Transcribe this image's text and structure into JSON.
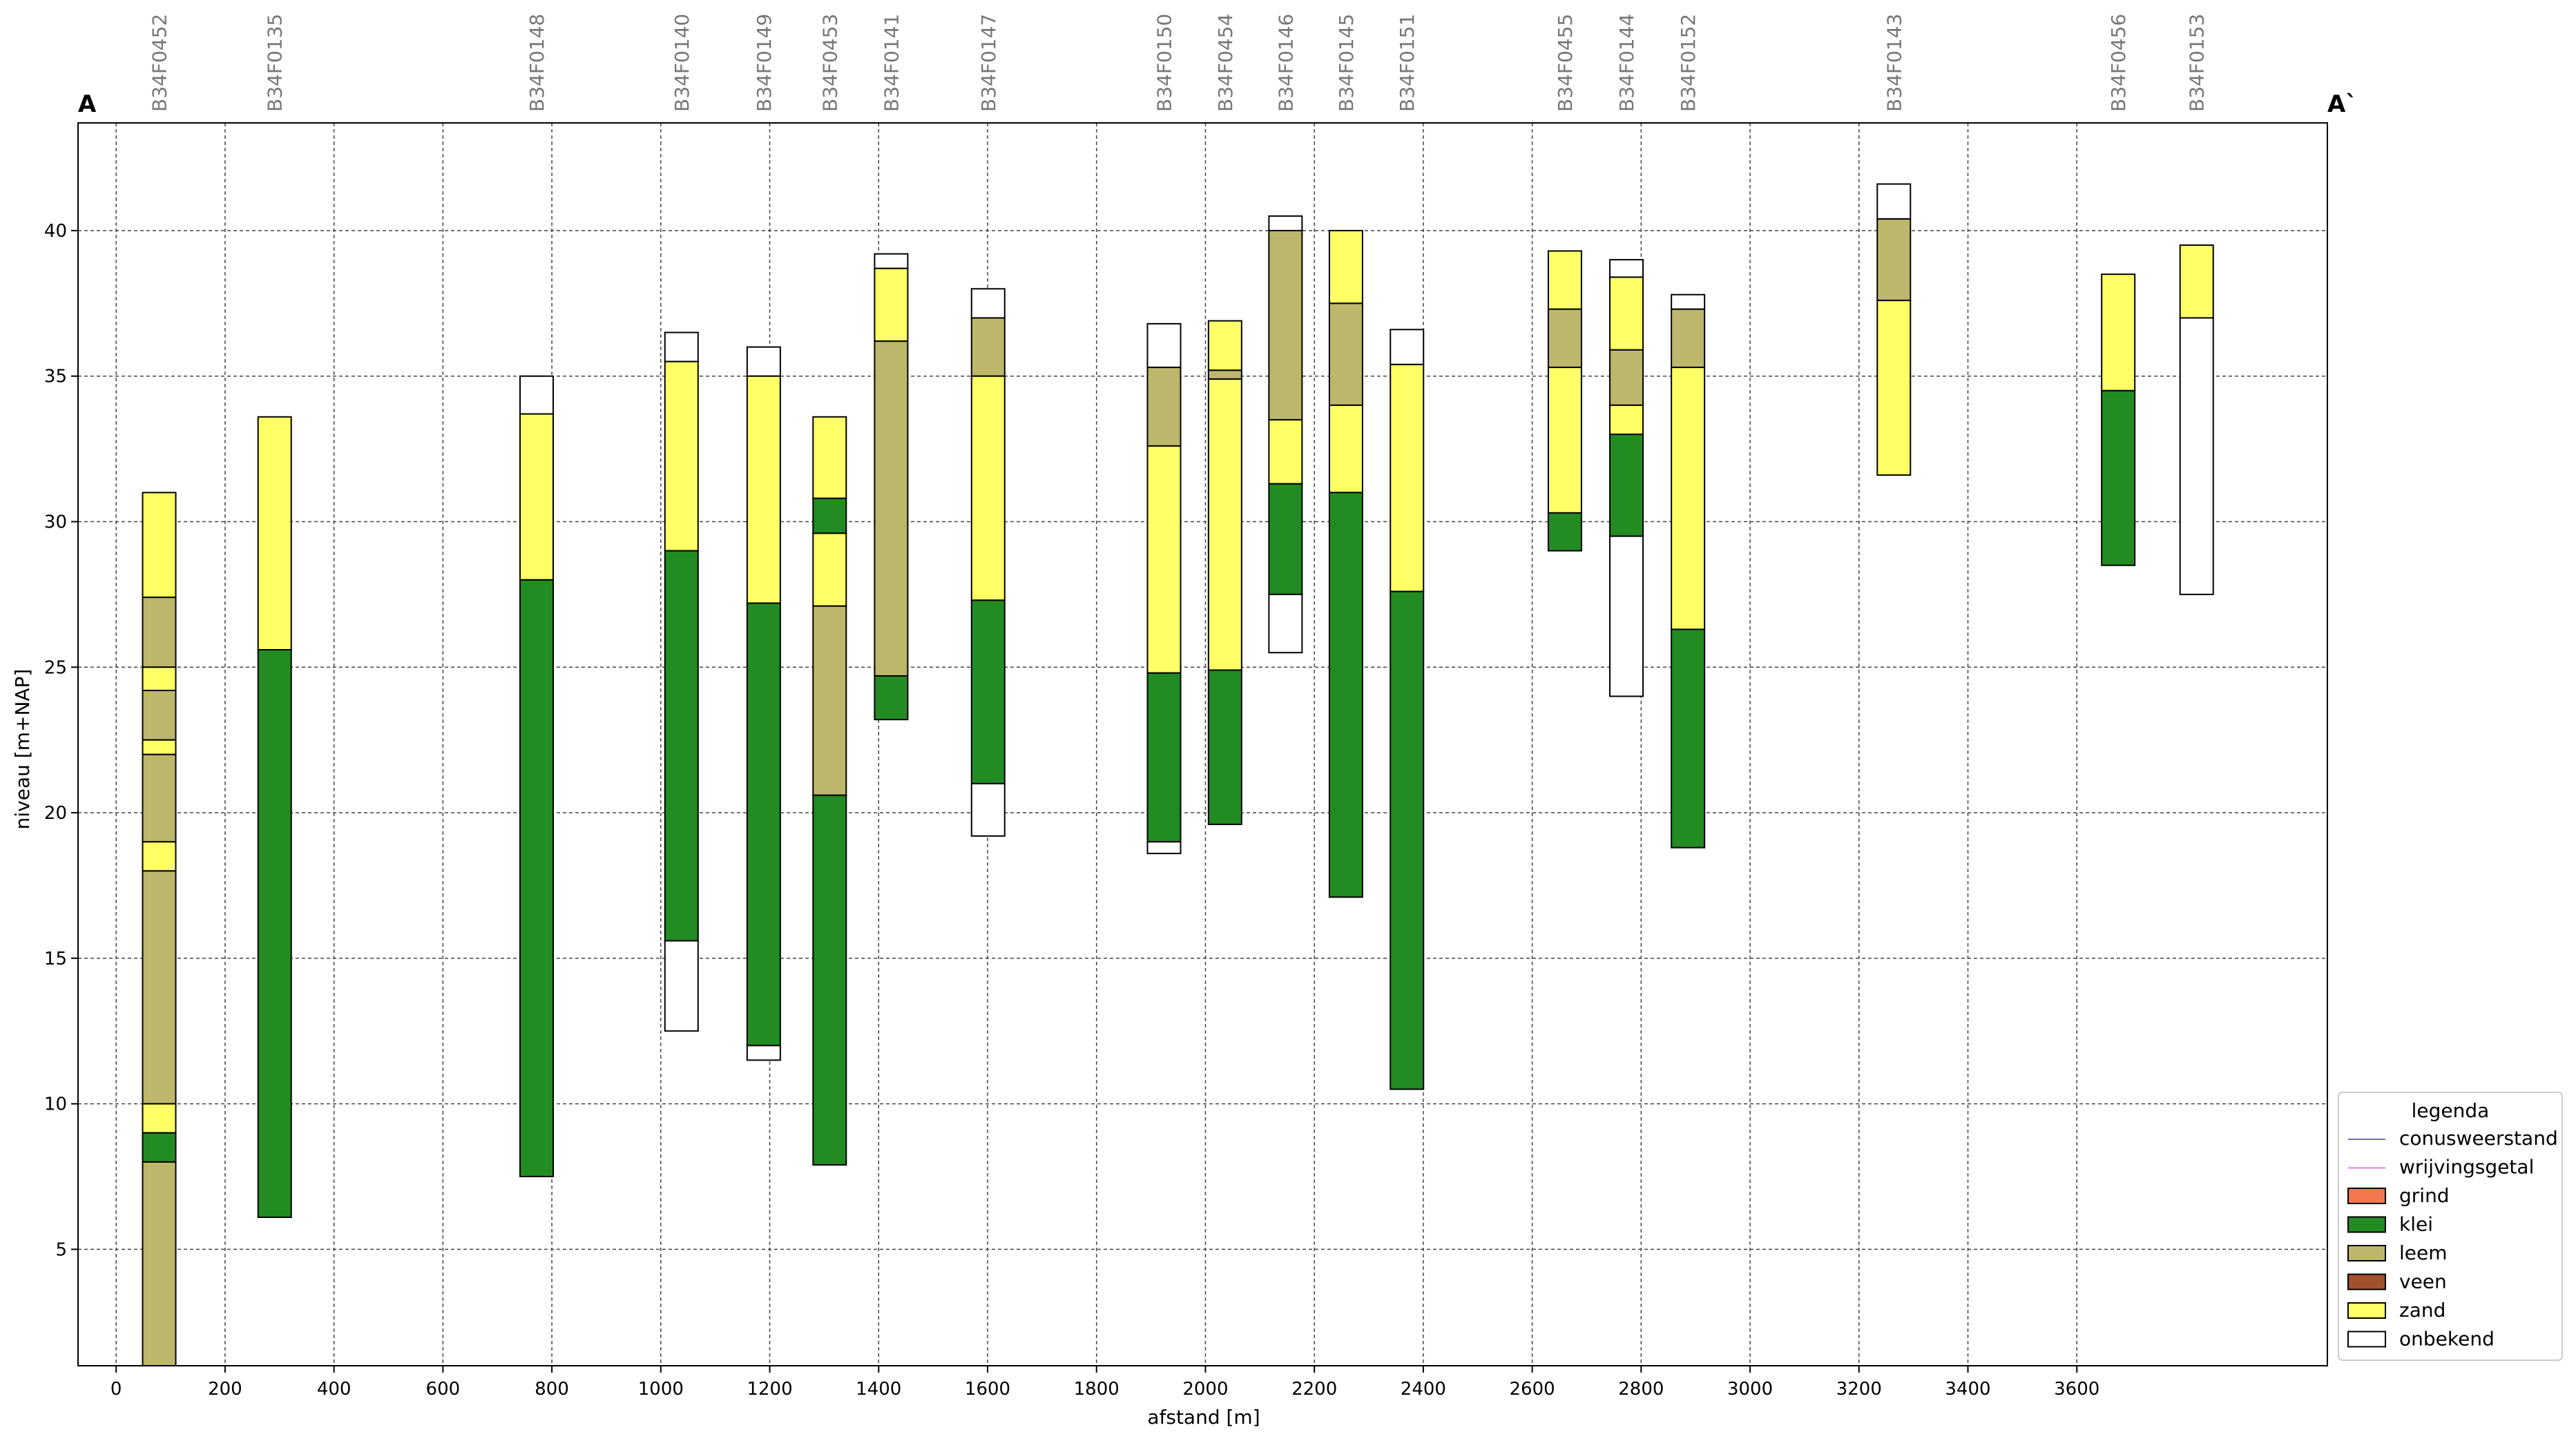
{
  "chart_data": {
    "type": "bar",
    "title": "",
    "xlabel": "afstand [m]",
    "ylabel": "niveau [m+NAP]",
    "xlim": [
      -70,
      4060
    ],
    "ylim": [
      1,
      43.7
    ],
    "xticks": [
      0,
      200,
      400,
      600,
      800,
      1000,
      1200,
      1400,
      1600,
      1800,
      2000,
      2200,
      2400,
      2600,
      2800,
      3000,
      3200,
      3400,
      3600
    ],
    "yticks": [
      5,
      10,
      15,
      20,
      25,
      30,
      35,
      40
    ],
    "grid": true,
    "section_start_label": "A",
    "section_end_label": "A`",
    "legend": {
      "title": "legenda",
      "placement": "lower-right outside",
      "lines": [
        {
          "label": "conusweerstand",
          "color": "#6b6bd6"
        },
        {
          "label": "wrijvingsgetal",
          "color": "#e07be0"
        }
      ],
      "patches": [
        {
          "label": "grind",
          "soil": "grind"
        },
        {
          "label": "klei",
          "soil": "klei"
        },
        {
          "label": "leem",
          "soil": "leem"
        },
        {
          "label": "veen",
          "soil": "veen"
        },
        {
          "label": "zand",
          "soil": "zand"
        },
        {
          "label": "onbekend",
          "soil": "onbekend"
        }
      ]
    },
    "colors": {
      "grind": "#f4774e",
      "klei": "#228b22",
      "leem": "#bdb76b",
      "veen": "#a0522d",
      "zand": "#ffff66",
      "onbekend": "#ffffff"
    },
    "boreholes": [
      {
        "name": "B34F0452",
        "x": 79,
        "layers": [
          {
            "top": 31.0,
            "bottom": 27.4,
            "soil": "zand"
          },
          {
            "top": 27.4,
            "bottom": 25.0,
            "soil": "leem"
          },
          {
            "top": 25.0,
            "bottom": 24.2,
            "soil": "zand"
          },
          {
            "top": 24.2,
            "bottom": 22.5,
            "soil": "leem"
          },
          {
            "top": 22.5,
            "bottom": 22.0,
            "soil": "zand"
          },
          {
            "top": 22.0,
            "bottom": 19.0,
            "soil": "leem"
          },
          {
            "top": 19.0,
            "bottom": 18.0,
            "soil": "zand"
          },
          {
            "top": 18.0,
            "bottom": 10.0,
            "soil": "leem"
          },
          {
            "top": 10.0,
            "bottom": 9.0,
            "soil": "zand"
          },
          {
            "top": 9.0,
            "bottom": 8.0,
            "soil": "klei"
          },
          {
            "top": 8.0,
            "bottom": 1.0,
            "soil": "leem"
          }
        ]
      },
      {
        "name": "B34F0135",
        "x": 291,
        "layers": [
          {
            "top": 33.6,
            "bottom": 25.6,
            "soil": "zand"
          },
          {
            "top": 25.6,
            "bottom": 6.1,
            "soil": "klei"
          }
        ]
      },
      {
        "name": "B34F0148",
        "x": 772,
        "layers": [
          {
            "top": 35.0,
            "bottom": 33.7,
            "soil": "onbekend"
          },
          {
            "top": 33.7,
            "bottom": 28.0,
            "soil": "zand"
          },
          {
            "top": 28.0,
            "bottom": 7.5,
            "soil": "klei"
          }
        ]
      },
      {
        "name": "B34F0140",
        "x": 1038,
        "layers": [
          {
            "top": 36.5,
            "bottom": 35.5,
            "soil": "onbekend"
          },
          {
            "top": 35.5,
            "bottom": 29.0,
            "soil": "zand"
          },
          {
            "top": 29.0,
            "bottom": 15.6,
            "soil": "klei"
          },
          {
            "top": 15.6,
            "bottom": 12.5,
            "soil": "onbekend"
          }
        ]
      },
      {
        "name": "B34F0149",
        "x": 1189,
        "layers": [
          {
            "top": 36.0,
            "bottom": 35.0,
            "soil": "onbekend"
          },
          {
            "top": 35.0,
            "bottom": 27.2,
            "soil": "zand"
          },
          {
            "top": 27.2,
            "bottom": 12.0,
            "soil": "klei"
          },
          {
            "top": 12.0,
            "bottom": 11.5,
            "soil": "onbekend"
          }
        ]
      },
      {
        "name": "B34F0453",
        "x": 1310,
        "layers": [
          {
            "top": 33.6,
            "bottom": 30.8,
            "soil": "zand"
          },
          {
            "top": 30.8,
            "bottom": 29.6,
            "soil": "klei"
          },
          {
            "top": 29.6,
            "bottom": 27.1,
            "soil": "zand"
          },
          {
            "top": 27.1,
            "bottom": 20.6,
            "soil": "leem"
          },
          {
            "top": 20.6,
            "bottom": 7.9,
            "soil": "klei"
          }
        ]
      },
      {
        "name": "B34F0141",
        "x": 1423,
        "layers": [
          {
            "top": 39.2,
            "bottom": 38.7,
            "soil": "onbekend"
          },
          {
            "top": 38.7,
            "bottom": 36.2,
            "soil": "zand"
          },
          {
            "top": 36.2,
            "bottom": 24.7,
            "soil": "leem"
          },
          {
            "top": 24.7,
            "bottom": 23.2,
            "soil": "klei"
          }
        ]
      },
      {
        "name": "B34F0147",
        "x": 1601,
        "layers": [
          {
            "top": 38.0,
            "bottom": 37.0,
            "soil": "onbekend"
          },
          {
            "top": 37.0,
            "bottom": 35.0,
            "soil": "leem"
          },
          {
            "top": 35.0,
            "bottom": 27.3,
            "soil": "zand"
          },
          {
            "top": 27.3,
            "bottom": 21.0,
            "soil": "klei"
          },
          {
            "top": 21.0,
            "bottom": 19.2,
            "soil": "onbekend"
          }
        ]
      },
      {
        "name": "B34F0150",
        "x": 1924,
        "layers": [
          {
            "top": 36.8,
            "bottom": 35.3,
            "soil": "onbekend"
          },
          {
            "top": 35.3,
            "bottom": 32.6,
            "soil": "leem"
          },
          {
            "top": 32.6,
            "bottom": 24.8,
            "soil": "zand"
          },
          {
            "top": 24.8,
            "bottom": 19.0,
            "soil": "klei"
          },
          {
            "top": 19.0,
            "bottom": 18.6,
            "soil": "onbekend"
          }
        ]
      },
      {
        "name": "B34F0454",
        "x": 2036,
        "layers": [
          {
            "top": 36.9,
            "bottom": 35.2,
            "soil": "zand"
          },
          {
            "top": 35.2,
            "bottom": 34.9,
            "soil": "leem"
          },
          {
            "top": 34.9,
            "bottom": 24.9,
            "soil": "zand"
          },
          {
            "top": 24.9,
            "bottom": 19.6,
            "soil": "klei"
          }
        ]
      },
      {
        "name": "B34F0146",
        "x": 2147,
        "layers": [
          {
            "top": 40.5,
            "bottom": 40.0,
            "soil": "onbekend"
          },
          {
            "top": 40.0,
            "bottom": 33.5,
            "soil": "leem"
          },
          {
            "top": 33.5,
            "bottom": 31.3,
            "soil": "zand"
          },
          {
            "top": 31.3,
            "bottom": 27.5,
            "soil": "klei"
          },
          {
            "top": 27.5,
            "bottom": 25.5,
            "soil": "onbekend"
          }
        ]
      },
      {
        "name": "B34F0145",
        "x": 2258,
        "layers": [
          {
            "top": 40.0,
            "bottom": 37.5,
            "soil": "zand"
          },
          {
            "top": 37.5,
            "bottom": 34.0,
            "soil": "leem"
          },
          {
            "top": 34.0,
            "bottom": 31.0,
            "soil": "zand"
          },
          {
            "top": 31.0,
            "bottom": 17.1,
            "soil": "klei"
          }
        ]
      },
      {
        "name": "B34F0151",
        "x": 2370,
        "layers": [
          {
            "top": 36.6,
            "bottom": 35.4,
            "soil": "onbekend"
          },
          {
            "top": 35.4,
            "bottom": 27.6,
            "soil": "zand"
          },
          {
            "top": 27.6,
            "bottom": 10.5,
            "soil": "klei"
          }
        ]
      },
      {
        "name": "B34F0455",
        "x": 2660,
        "layers": [
          {
            "top": 39.3,
            "bottom": 37.3,
            "soil": "zand"
          },
          {
            "top": 37.3,
            "bottom": 35.3,
            "soil": "leem"
          },
          {
            "top": 35.3,
            "bottom": 30.3,
            "soil": "zand"
          },
          {
            "top": 30.3,
            "bottom": 29.0,
            "soil": "klei"
          }
        ]
      },
      {
        "name": "B34F0144",
        "x": 2773,
        "layers": [
          {
            "top": 39.0,
            "bottom": 38.4,
            "soil": "onbekend"
          },
          {
            "top": 38.4,
            "bottom": 35.9,
            "soil": "zand"
          },
          {
            "top": 35.9,
            "bottom": 34.0,
            "soil": "leem"
          },
          {
            "top": 34.0,
            "bottom": 33.0,
            "soil": "zand"
          },
          {
            "top": 33.0,
            "bottom": 29.5,
            "soil": "klei"
          },
          {
            "top": 29.5,
            "bottom": 24.0,
            "soil": "onbekend"
          }
        ]
      },
      {
        "name": "B34F0152",
        "x": 2886,
        "layers": [
          {
            "top": 37.8,
            "bottom": 37.3,
            "soil": "onbekend"
          },
          {
            "top": 37.3,
            "bottom": 35.3,
            "soil": "leem"
          },
          {
            "top": 35.3,
            "bottom": 26.3,
            "soil": "zand"
          },
          {
            "top": 26.3,
            "bottom": 18.8,
            "soil": "klei"
          }
        ]
      },
      {
        "name": "B34F0143",
        "x": 3264,
        "layers": [
          {
            "top": 41.6,
            "bottom": 40.4,
            "soil": "onbekend"
          },
          {
            "top": 40.4,
            "bottom": 37.6,
            "soil": "leem"
          },
          {
            "top": 37.6,
            "bottom": 31.6,
            "soil": "zand"
          }
        ]
      },
      {
        "name": "B34F0456",
        "x": 3676,
        "layers": [
          {
            "top": 38.5,
            "bottom": 34.5,
            "soil": "zand"
          },
          {
            "top": 34.5,
            "bottom": 28.5,
            "soil": "klei"
          }
        ]
      },
      {
        "name": "B34F0153",
        "x": 3820,
        "layers": [
          {
            "top": 39.5,
            "bottom": 37.0,
            "soil": "zand"
          },
          {
            "top": 37.0,
            "bottom": 27.5,
            "soil": "onbekend"
          }
        ]
      }
    ]
  }
}
